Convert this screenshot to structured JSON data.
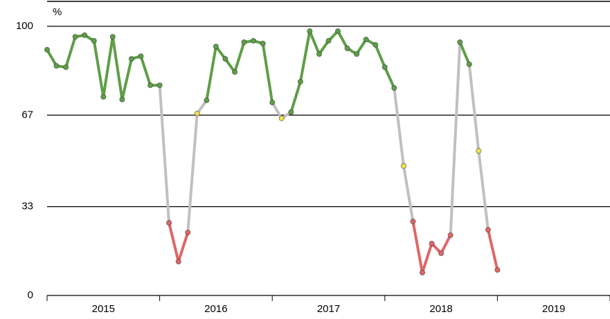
{
  "chart_data": {
    "type": "line",
    "y_label": "%",
    "x": [
      2015.0,
      2015.083,
      2015.167,
      2015.25,
      2015.333,
      2015.417,
      2015.5,
      2015.583,
      2015.667,
      2015.75,
      2015.833,
      2015.917,
      2016.0,
      2016.083,
      2016.167,
      2016.25,
      2016.333,
      2016.417,
      2016.5,
      2016.583,
      2016.667,
      2016.75,
      2016.833,
      2016.917,
      2017.0,
      2017.083,
      2017.167,
      2017.25,
      2017.333,
      2017.417,
      2017.5,
      2017.583,
      2017.667,
      2017.75,
      2017.833,
      2017.917,
      2018.0,
      2018.083,
      2018.167,
      2018.25,
      2018.333,
      2018.417,
      2018.5,
      2018.583,
      2018.667,
      2018.75,
      2018.833,
      2018.917,
      2019.0
    ],
    "series": [
      {
        "values": [
          91.3,
          85.3,
          84.8,
          96.1,
          96.7,
          94.6,
          73.8,
          96.1,
          72.8,
          87.9,
          88.9,
          78.1,
          78.1,
          27.0,
          12.6,
          23.4,
          67.6,
          72.5,
          92.5,
          87.9,
          83.0,
          94.1,
          94.6,
          93.6,
          71.7,
          65.8,
          68.1,
          79.4,
          98.2,
          89.7,
          94.6,
          98.2,
          91.8,
          89.7,
          95.1,
          93.1,
          84.8,
          77.1,
          48.1,
          27.5,
          8.5,
          19.3,
          15.7,
          22.4,
          94.1,
          85.9,
          53.7,
          24.4,
          9.5
        ],
        "colors": [
          "#5e9e48",
          "#5e9e48",
          "#5e9e48",
          "#5e9e48",
          "#5e9e48",
          "#5e9e48",
          "#5e9e48",
          "#5e9e48",
          "#5e9e48",
          "#5e9e48",
          "#5e9e48",
          "#5e9e48",
          "#5e9e48",
          "#e06666",
          "#e06666",
          "#e06666",
          "#f1e04a",
          "#5e9e48",
          "#5e9e48",
          "#5e9e48",
          "#5e9e48",
          "#5e9e48",
          "#5e9e48",
          "#5e9e48",
          "#5e9e48",
          "#f1e04a",
          "#5e9e48",
          "#5e9e48",
          "#5e9e48",
          "#5e9e48",
          "#5e9e48",
          "#5e9e48",
          "#5e9e48",
          "#5e9e48",
          "#5e9e48",
          "#5e9e48",
          "#5e9e48",
          "#5e9e48",
          "#f1e04a",
          "#e06666",
          "#e06666",
          "#e06666",
          "#e06666",
          "#e06666",
          "#5e9e48",
          "#5e9e48",
          "#f1e04a",
          "#e06666",
          "#e06666"
        ]
      }
    ],
    "transition_color": "#c0c0c0",
    "xlim": [
      2015,
      2020
    ],
    "xtick_marks": [
      2015,
      2016,
      2017,
      2018,
      2019,
      2020
    ],
    "xticks": [
      {
        "value": 2015.5,
        "label": "2015"
      },
      {
        "value": 2016.5,
        "label": "2016"
      },
      {
        "value": 2017.5,
        "label": "2017"
      },
      {
        "value": 2018.5,
        "label": "2018"
      },
      {
        "value": 2019.5,
        "label": "2019"
      }
    ],
    "ylim": [
      0,
      100
    ],
    "yticks": [
      0,
      33,
      67,
      100
    ],
    "grid": true
  }
}
